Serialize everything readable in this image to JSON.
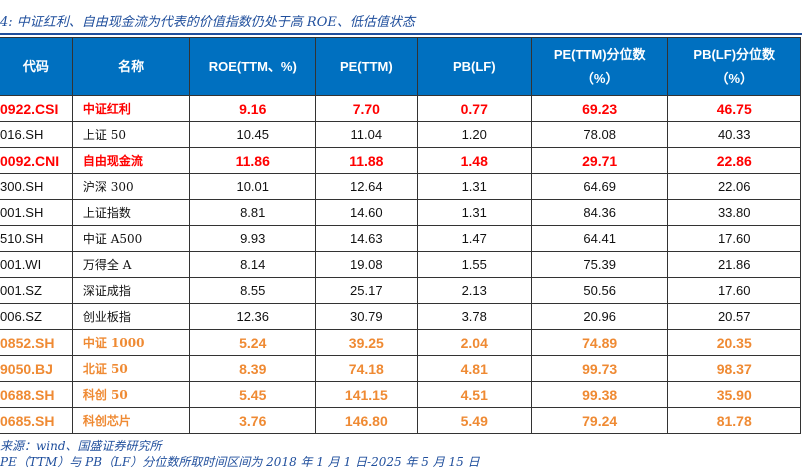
{
  "title": "4:  中证红利、自由现金流为代表的价值指数仍处于高 ROE、低估值状态",
  "headers": [
    "代码",
    "名称",
    "ROE(TTM、%)",
    "PE(TTM)",
    "PB(LF)",
    "PE(TTM)分位数",
    "PB(LF)分位数"
  ],
  "header_units": [
    "",
    "",
    "",
    "",
    "",
    "（%）",
    "（%）"
  ],
  "colors": {
    "header_bg": "#0070c0",
    "highlight_red": "#ff0000",
    "highlight_orange": "#ef8a33",
    "rule": "#1f4e9c"
  },
  "rows": [
    {
      "style": "red",
      "code": "0922.CSI",
      "name": "中证红利",
      "roe": "9.16",
      "pe": "7.70",
      "pb": "0.77",
      "pe_pct": "69.23",
      "pb_pct": "46.75"
    },
    {
      "style": "",
      "code": "016.SH",
      "name": "上证 50",
      "roe": "10.45",
      "pe": "11.04",
      "pb": "1.20",
      "pe_pct": "78.08",
      "pb_pct": "40.33"
    },
    {
      "style": "red",
      "code": "0092.CNI",
      "name": "自由现金流",
      "roe": "11.86",
      "pe": "11.88",
      "pb": "1.48",
      "pe_pct": "29.71",
      "pb_pct": "22.86"
    },
    {
      "style": "",
      "code": "300.SH",
      "name": "沪深 300",
      "roe": "10.01",
      "pe": "12.64",
      "pb": "1.31",
      "pe_pct": "64.69",
      "pb_pct": "22.06"
    },
    {
      "style": "",
      "code": "001.SH",
      "name": "上证指数",
      "roe": "8.81",
      "pe": "14.60",
      "pb": "1.31",
      "pe_pct": "84.36",
      "pb_pct": "33.80"
    },
    {
      "style": "",
      "code": "510.SH",
      "name": "中证 A500",
      "roe": "9.93",
      "pe": "14.63",
      "pb": "1.47",
      "pe_pct": "64.41",
      "pb_pct": "17.60"
    },
    {
      "style": "",
      "code": "001.WI",
      "name": "万得全 A",
      "roe": "8.14",
      "pe": "19.08",
      "pb": "1.55",
      "pe_pct": "75.39",
      "pb_pct": "21.86"
    },
    {
      "style": "",
      "code": "001.SZ",
      "name": "深证成指",
      "roe": "8.55",
      "pe": "25.17",
      "pb": "2.13",
      "pe_pct": "50.56",
      "pb_pct": "17.60"
    },
    {
      "style": "",
      "code": "006.SZ",
      "name": "创业板指",
      "roe": "12.36",
      "pe": "30.79",
      "pb": "3.78",
      "pe_pct": "20.96",
      "pb_pct": "20.57"
    },
    {
      "style": "orange",
      "code": "0852.SH",
      "name": "中证 1000",
      "roe": "5.24",
      "pe": "39.25",
      "pb": "2.04",
      "pe_pct": "74.89",
      "pb_pct": "20.35"
    },
    {
      "style": "orange",
      "code": "9050.BJ",
      "name": "北证 50",
      "roe": "8.39",
      "pe": "74.18",
      "pb": "4.81",
      "pe_pct": "99.73",
      "pb_pct": "98.37"
    },
    {
      "style": "orange",
      "code": "0688.SH",
      "name": "科创 50",
      "roe": "5.45",
      "pe": "141.15",
      "pb": "4.51",
      "pe_pct": "99.38",
      "pb_pct": "35.90"
    },
    {
      "style": "orange",
      "code": "0685.SH",
      "name": "科创芯片",
      "roe": "3.76",
      "pe": "146.80",
      "pb": "5.49",
      "pe_pct": "79.24",
      "pb_pct": "81.78"
    }
  ],
  "notes": [
    "来源：wind、国盛证券研究所",
    "PE（TTM）与 PB（LF）分位数所取时间区间为 2018 年 1 月 1 日-2025 年 5 月 15 日"
  ]
}
